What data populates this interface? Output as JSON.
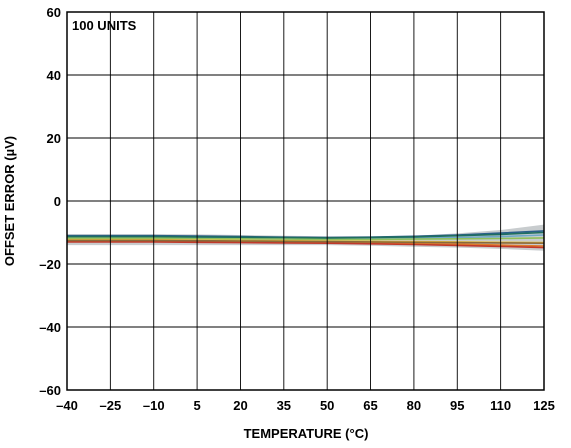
{
  "chart_data": {
    "type": "line",
    "title": "",
    "annotation": "100 UNITS",
    "xlabel": "TEMPERATURE (°C)",
    "ylabel": "OFFSET ERROR (µV)",
    "xlim": [
      -40,
      125
    ],
    "ylim": [
      -60,
      60
    ],
    "x_ticks": [
      -40,
      -25,
      -10,
      5,
      20,
      35,
      50,
      65,
      80,
      95,
      110,
      125
    ],
    "x_tick_labels": [
      "–40",
      "–25",
      "–10",
      "5",
      "20",
      "35",
      "50",
      "65",
      "80",
      "95",
      "110",
      "125"
    ],
    "y_ticks": [
      -60,
      -40,
      -20,
      0,
      20,
      40,
      60
    ],
    "y_tick_labels": [
      "–60",
      "–40",
      "–20",
      "0",
      "20",
      "40",
      "60"
    ],
    "grid": true,
    "x": [
      -40,
      -25,
      -10,
      5,
      20,
      35,
      50,
      65,
      80,
      95,
      110,
      125
    ],
    "envelope": {
      "color": "#c8ccce",
      "upper": [
        -10.5,
        -10.5,
        -10.5,
        -10.6,
        -10.8,
        -11.0,
        -11.2,
        -11.2,
        -11.0,
        -10.3,
        -9.2,
        -7.5
      ],
      "lower": [
        -14.0,
        -14.0,
        -14.0,
        -14.0,
        -14.0,
        -14.0,
        -14.0,
        -14.2,
        -14.5,
        -14.8,
        -15.2,
        -15.8
      ]
    },
    "series": [
      {
        "color": "#2b5f8a",
        "values": [
          -11.0,
          -11.0,
          -11.0,
          -11.1,
          -11.3,
          -11.5,
          -11.6,
          -11.5,
          -11.2,
          -10.8,
          -10.2,
          -9.5
        ]
      },
      {
        "color": "#6fa8c8",
        "values": [
          -11.5,
          -11.5,
          -11.5,
          -11.6,
          -11.7,
          -11.8,
          -11.9,
          -11.9,
          -11.8,
          -11.6,
          -11.3,
          -10.8
        ]
      },
      {
        "color": "#8fbf5a",
        "values": [
          -11.8,
          -11.8,
          -11.8,
          -11.9,
          -12.0,
          -12.1,
          -12.2,
          -12.2,
          -12.1,
          -12.0,
          -11.9,
          -11.7
        ]
      },
      {
        "color": "#e8c040",
        "values": [
          -12.3,
          -12.3,
          -12.3,
          -12.4,
          -12.5,
          -12.6,
          -12.7,
          -12.8,
          -12.9,
          -13.0,
          -13.1,
          -13.2
        ]
      },
      {
        "color": "#e07a2a",
        "values": [
          -12.7,
          -12.7,
          -12.7,
          -12.8,
          -12.9,
          -13.0,
          -13.1,
          -13.3,
          -13.5,
          -13.7,
          -14.0,
          -14.3
        ]
      },
      {
        "color": "#c0392b",
        "values": [
          -13.0,
          -13.0,
          -13.0,
          -13.1,
          -13.2,
          -13.3,
          -13.4,
          -13.6,
          -13.8,
          -14.1,
          -14.4,
          -14.8
        ]
      },
      {
        "color": "#8a6a3a",
        "values": [
          -12.5,
          -12.5,
          -12.5,
          -12.6,
          -12.7,
          -12.8,
          -12.9,
          -13.0,
          -13.1,
          -13.2,
          -13.3,
          -13.4
        ]
      },
      {
        "color": "#1f6f5f",
        "values": [
          -11.3,
          -11.3,
          -11.3,
          -11.4,
          -11.5,
          -11.6,
          -11.7,
          -11.6,
          -11.4,
          -11.0,
          -10.6,
          -10.0
        ]
      }
    ]
  }
}
